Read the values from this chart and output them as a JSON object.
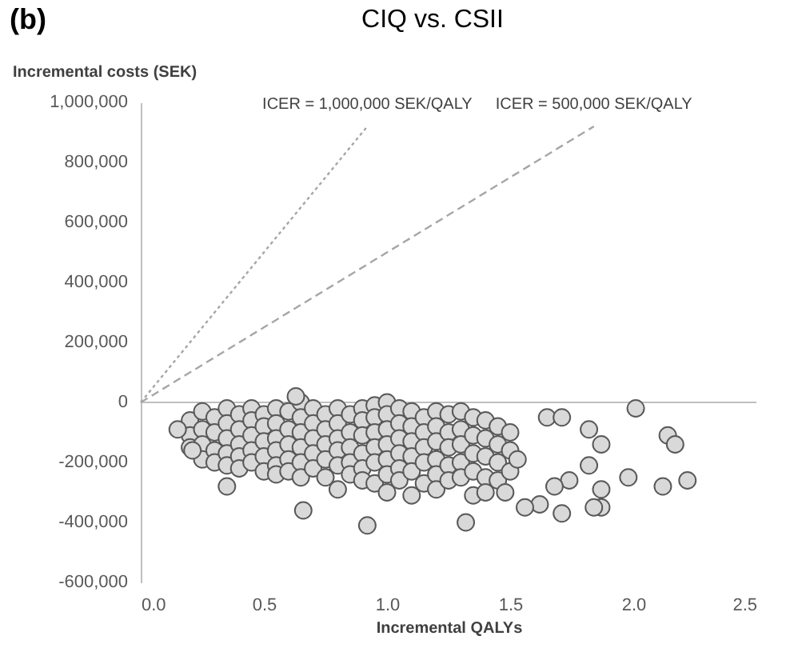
{
  "chart_data": {
    "type": "scatter",
    "title": "CIQ vs. CSII",
    "xlabel": "Incremental QALYs",
    "ylabel": "Incremental costs (SEK)",
    "annotations": [
      "(b)"
    ],
    "xlim": [
      0,
      2.5
    ],
    "xticks": [
      {
        "value": 0,
        "label": "0.0"
      },
      {
        "value": 0.5,
        "label": "0.5"
      },
      {
        "value": 1,
        "label": "1.0"
      },
      {
        "value": 1.5,
        "label": "1.5"
      },
      {
        "value": 2,
        "label": "2.0"
      },
      {
        "value": 2.5,
        "label": "2.5"
      }
    ],
    "ylim": [
      -600000,
      1000000
    ],
    "yticks": [
      {
        "value": -600000,
        "label": "-600,000"
      },
      {
        "value": -400000,
        "label": "-400,000"
      },
      {
        "value": -200000,
        "label": "-200,000"
      },
      {
        "value": 0,
        "label": "0"
      },
      {
        "value": 200000,
        "label": "200,000"
      },
      {
        "value": 400000,
        "label": "400,000"
      },
      {
        "value": 600000,
        "label": "600,000"
      },
      {
        "value": 800000,
        "label": "800,000"
      },
      {
        "value": 1000000,
        "label": "1,000,000"
      }
    ],
    "grid": false,
    "ref_lines": [
      {
        "axis": "y",
        "value": 0,
        "color": "#bfbfbf"
      }
    ],
    "series": [
      {
        "type": "line",
        "name": "ICER = 1,000,000 SEK/QALY",
        "color": "#a6a6a6",
        "line_style": "dotted",
        "x": [
          0,
          0.92
        ],
        "values": [
          0,
          920000
        ]
      },
      {
        "type": "line",
        "name": "ICER = 500,000 SEK/QALY",
        "color": "#a6a6a6",
        "line_style": "dashed",
        "x": [
          0,
          1.84
        ],
        "values": [
          0,
          920000
        ]
      },
      {
        "color": "#d9d9d9",
        "marker": "circle",
        "x": [
          0.2,
          0.2,
          0.2,
          0.25,
          0.25,
          0.25,
          0.25,
          0.3,
          0.3,
          0.3,
          0.3,
          0.35,
          0.35,
          0.35,
          0.35,
          0.35,
          0.4,
          0.4,
          0.4,
          0.4,
          0.4,
          0.45,
          0.45,
          0.45,
          0.45,
          0.45,
          0.5,
          0.5,
          0.5,
          0.5,
          0.5,
          0.55,
          0.55,
          0.55,
          0.55,
          0.55,
          0.55,
          0.6,
          0.6,
          0.6,
          0.6,
          0.6,
          0.65,
          0.65,
          0.65,
          0.65,
          0.65,
          0.65,
          0.7,
          0.7,
          0.7,
          0.7,
          0.7,
          0.75,
          0.75,
          0.75,
          0.75,
          0.75,
          0.8,
          0.8,
          0.8,
          0.8,
          0.8,
          0.8,
          0.85,
          0.85,
          0.85,
          0.85,
          0.85,
          0.9,
          0.9,
          0.9,
          0.9,
          0.9,
          0.9,
          0.95,
          0.95,
          0.95,
          0.95,
          0.95,
          0.95,
          1.0,
          1.0,
          1.0,
          1.0,
          1.0,
          1.0,
          1.0,
          1.05,
          1.05,
          1.05,
          1.05,
          1.05,
          1.05,
          1.1,
          1.1,
          1.1,
          1.1,
          1.1,
          1.1,
          1.15,
          1.15,
          1.15,
          1.15,
          1.15,
          1.2,
          1.2,
          1.2,
          1.2,
          1.2,
          1.2,
          1.25,
          1.25,
          1.25,
          1.25,
          1.25,
          1.3,
          1.3,
          1.3,
          1.3,
          1.3,
          1.35,
          1.35,
          1.35,
          1.35,
          1.35,
          1.4,
          1.4,
          1.4,
          1.4,
          1.4,
          1.45,
          1.45,
          1.45,
          1.45,
          1.5,
          1.5,
          1.5,
          2.01,
          2.14,
          2.17,
          2.12,
          2.22,
          1.98,
          1.87,
          1.87,
          1.84,
          1.71,
          1.62,
          1.56,
          1.32,
          0.92,
          0.66,
          0.35,
          0.15,
          0.21,
          1.65,
          1.71,
          1.82,
          1.87,
          1.82,
          1.74,
          1.68,
          1.53,
          1.48,
          0.63
        ],
        "values": [
          -60000,
          -110000,
          -150000,
          -30000,
          -90000,
          -140000,
          -190000,
          -50000,
          -100000,
          -160000,
          -200000,
          -20000,
          -70000,
          -120000,
          -170000,
          -210000,
          -40000,
          -90000,
          -140000,
          -180000,
          -220000,
          -20000,
          -60000,
          -110000,
          -160000,
          -200000,
          -40000,
          -80000,
          -130000,
          -180000,
          -230000,
          -20000,
          -70000,
          -120000,
          -160000,
          -210000,
          -240000,
          -30000,
          -90000,
          -140000,
          -190000,
          -230000,
          0,
          -50000,
          -100000,
          -150000,
          -200000,
          -250000,
          -20000,
          -70000,
          -120000,
          -170000,
          -220000,
          -40000,
          -90000,
          -140000,
          -190000,
          -250000,
          -20000,
          -70000,
          -120000,
          -160000,
          -210000,
          -290000,
          -40000,
          -100000,
          -150000,
          -200000,
          -240000,
          -20000,
          -60000,
          -110000,
          -170000,
          -220000,
          -260000,
          -10000,
          -50000,
          -100000,
          -150000,
          -200000,
          -270000,
          0,
          -40000,
          -90000,
          -140000,
          -190000,
          -240000,
          -300000,
          -20000,
          -70000,
          -120000,
          -170000,
          -220000,
          -260000,
          -30000,
          -80000,
          -130000,
          -180000,
          -230000,
          -310000,
          -50000,
          -100000,
          -150000,
          -200000,
          -270000,
          -30000,
          -80000,
          -130000,
          -190000,
          -240000,
          -290000,
          -40000,
          -100000,
          -150000,
          -210000,
          -260000,
          -30000,
          -90000,
          -140000,
          -200000,
          -250000,
          -50000,
          -110000,
          -170000,
          -230000,
          -310000,
          -60000,
          -120000,
          -180000,
          -250000,
          -300000,
          -80000,
          -140000,
          -200000,
          -260000,
          -100000,
          -160000,
          -230000,
          -20000,
          -110000,
          -140000,
          -280000,
          -260000,
          -250000,
          -290000,
          -350000,
          -350000,
          -370000,
          -340000,
          -350000,
          -400000,
          -410000,
          -360000,
          -280000,
          -90000,
          -160000,
          -50000,
          -50000,
          -90000,
          -140000,
          -210000,
          -260000,
          -280000,
          -190000,
          -300000,
          20000
        ]
      }
    ]
  }
}
